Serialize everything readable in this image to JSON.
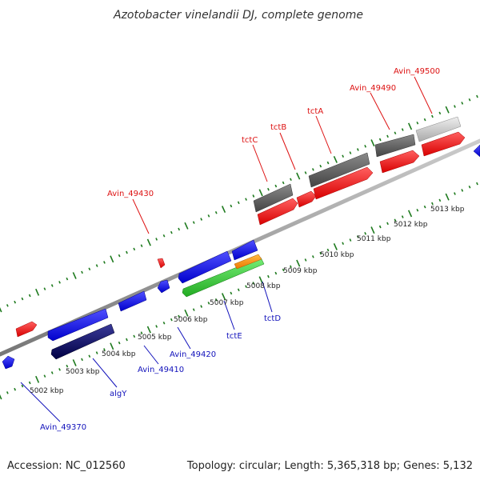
{
  "title": "Azotobacter vinelandii DJ, complete genome",
  "footer": {
    "accession": "Accession: NC_012560",
    "topology": "Topology: circular; Length: 5,365,318 bp; Genes: 5,132"
  },
  "scale_labels": [
    "5002 kbp",
    "5003 kbp",
    "5004 kbp",
    "5005 kbp",
    "5006 kbp",
    "5007 kbp",
    "5008 kbp",
    "5009 kbp",
    "5010 kbp",
    "5011 kbp",
    "5012 kbp",
    "5013 kbp"
  ],
  "gene_labels": {
    "forward": [
      "tctC",
      "tctB",
      "tctA",
      "Avin_49490",
      "Avin_49500",
      "Avin_49430"
    ],
    "reverse": [
      "Avin_49370",
      "algY",
      "Avin_49410",
      "Avin_49420",
      "tctE",
      "tctD"
    ]
  },
  "colors": {
    "forward_label": "#dd1111",
    "reverse_label": "#1111bb",
    "forward_gene": "#ff2020",
    "reverse_gene": "#1a1aff",
    "dark_gene": "#0d0d66",
    "gray_gene": "#666666",
    "light_gene": "#c8c8c8",
    "green_gene": "#33cc33",
    "orange_gene": "#ff9900",
    "tick": "#1e7a1e",
    "backbone": "#888888"
  }
}
